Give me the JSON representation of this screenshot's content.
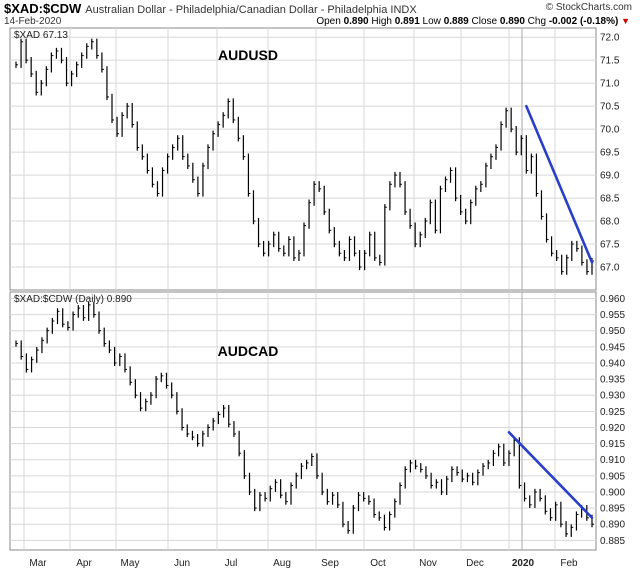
{
  "header": {
    "symbol": "$XAD:$CDW",
    "description": "Australian Dollar - Philadelphia/Canadian Dollar - Philadelphia INDX",
    "brand": "© StockCharts.com",
    "date": "14-Feb-2020",
    "open_label": "Open",
    "open": "0.890",
    "high_label": "High",
    "high": "0.891",
    "low_label": "Low",
    "low": "0.889",
    "close_label": "Close",
    "close": "0.890",
    "chg_label": "Chg",
    "chg": "-0.002 (-0.18%)"
  },
  "colors": {
    "price": "#000000",
    "trendline": "#2a3fc8",
    "grid": "#d7d7d7"
  },
  "chart_data": [
    {
      "type": "line",
      "title": "AUDUSD",
      "panel_label": "$XAD 67.13",
      "ylim": [
        66.5,
        72.2
      ],
      "yticks": [
        "67.0",
        "67.5",
        "68.0",
        "68.5",
        "69.0",
        "69.5",
        "70.0",
        "70.5",
        "71.0",
        "71.5",
        "72.0"
      ],
      "xlabels": [
        "Mar",
        "Apr",
        "May",
        "Jun",
        "Jul",
        "Aug",
        "Sep",
        "Oct",
        "Nov",
        "Dec",
        "2020",
        "Feb"
      ],
      "series": [
        {
          "values": [
            71.4,
            71.9,
            71.5,
            71.2,
            70.8,
            71.0,
            71.3,
            71.6,
            71.7,
            71.5,
            71.0,
            71.2,
            71.4,
            71.6,
            71.8,
            71.9,
            71.6,
            71.3,
            70.7,
            70.2,
            69.9,
            70.3,
            70.5,
            70.1,
            69.6,
            69.4,
            69.1,
            68.8,
            68.6,
            69.1,
            69.4,
            69.6,
            69.8,
            69.4,
            69.2,
            68.9,
            68.6,
            69.2,
            69.6,
            69.9,
            70.1,
            70.3,
            70.6,
            70.2,
            69.8,
            69.4,
            68.6,
            68.0,
            67.5,
            67.3,
            67.5,
            67.7,
            67.4,
            67.3,
            67.6,
            67.2,
            67.3,
            67.9,
            68.4,
            68.8,
            68.7,
            68.2,
            67.8,
            67.5,
            67.3,
            67.2,
            67.6,
            67.3,
            67.0,
            67.3,
            67.7,
            67.2,
            67.1,
            68.3,
            68.8,
            69.0,
            68.8,
            68.2,
            67.9,
            67.5,
            67.7,
            68.0,
            68.4,
            67.8,
            68.7,
            68.9,
            69.1,
            68.5,
            68.2,
            68.0,
            68.4,
            68.7,
            68.8,
            69.2,
            69.4,
            69.6,
            70.1,
            70.4,
            70.0,
            69.5,
            69.8,
            69.1,
            69.4,
            68.6,
            68.1,
            67.6,
            67.3,
            67.2,
            66.9,
            67.2,
            67.5,
            67.4,
            67.1,
            66.9,
            67.13
          ]
        }
      ],
      "trendline": {
        "x_start_index": 101,
        "x_end_index": 114,
        "y_start": 70.5,
        "y_end": 67.1
      }
    },
    {
      "type": "line",
      "title": "AUDCAD",
      "panel_label": "$XAD:$CDW (Daily) 0.890",
      "ylim": [
        0.882,
        0.962
      ],
      "yticks": [
        "0.885",
        "0.890",
        "0.895",
        "0.900",
        "0.905",
        "0.910",
        "0.915",
        "0.920",
        "0.925",
        "0.930",
        "0.935",
        "0.940",
        "0.945",
        "0.950",
        "0.955",
        "0.960"
      ],
      "xlabels": [
        "Mar",
        "Apr",
        "May",
        "Jun",
        "Jul",
        "Aug",
        "Sep",
        "Oct",
        "Nov",
        "Dec",
        "2020",
        "Feb"
      ],
      "series": [
        {
          "values": [
            0.946,
            0.942,
            0.938,
            0.941,
            0.944,
            0.947,
            0.95,
            0.953,
            0.956,
            0.952,
            0.951,
            0.955,
            0.957,
            0.954,
            0.958,
            0.955,
            0.95,
            0.946,
            0.944,
            0.94,
            0.942,
            0.938,
            0.934,
            0.93,
            0.926,
            0.928,
            0.93,
            0.935,
            0.936,
            0.933,
            0.93,
            0.925,
            0.92,
            0.918,
            0.917,
            0.915,
            0.918,
            0.92,
            0.922,
            0.924,
            0.926,
            0.921,
            0.918,
            0.912,
            0.905,
            0.9,
            0.895,
            0.899,
            0.898,
            0.901,
            0.903,
            0.899,
            0.897,
            0.902,
            0.905,
            0.908,
            0.909,
            0.911,
            0.905,
            0.9,
            0.897,
            0.899,
            0.896,
            0.89,
            0.888,
            0.895,
            0.899,
            0.898,
            0.897,
            0.893,
            0.892,
            0.889,
            0.893,
            0.897,
            0.902,
            0.907,
            0.909,
            0.908,
            0.907,
            0.905,
            0.902,
            0.903,
            0.9,
            0.904,
            0.907,
            0.906,
            0.904,
            0.905,
            0.903,
            0.906,
            0.908,
            0.909,
            0.912,
            0.914,
            0.909,
            0.912,
            0.916,
            0.902,
            0.898,
            0.896,
            0.9,
            0.898,
            0.894,
            0.892,
            0.896,
            0.89,
            0.887,
            0.889,
            0.893,
            0.895,
            0.892,
            0.89
          ]
        }
      ],
      "trendline": {
        "x_start_index": 95,
        "x_end_index": 111,
        "y_start": 0.9185,
        "y_end": 0.892
      }
    }
  ]
}
